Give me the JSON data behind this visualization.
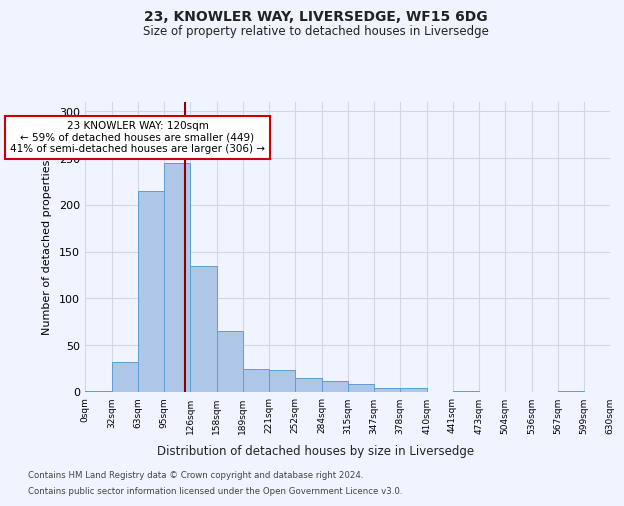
{
  "title1": "23, KNOWLER WAY, LIVERSEDGE, WF15 6DG",
  "title2": "Size of property relative to detached houses in Liversedge",
  "xlabel": "Distribution of detached houses by size in Liversedge",
  "ylabel": "Number of detached properties",
  "bar_color": "#aec6e8",
  "bar_edge_color": "#5a9fd4",
  "grid_color": "#d0d8e8",
  "property_line_color": "#8b0000",
  "property_sqm": 120,
  "annotation_line1": "23 KNOWLER WAY: 120sqm",
  "annotation_line2": "← 59% of detached houses are smaller (449)",
  "annotation_line3": "41% of semi-detached houses are larger (306) →",
  "annotation_box_color": "#ffffff",
  "annotation_box_edge_color": "#cc0000",
  "footnote1": "Contains HM Land Registry data © Crown copyright and database right 2024.",
  "footnote2": "Contains public sector information licensed under the Open Government Licence v3.0.",
  "bin_edges": [
    0,
    32,
    63,
    95,
    126,
    158,
    189,
    221,
    252,
    284,
    315,
    347,
    378,
    410,
    441,
    473,
    504,
    536,
    567,
    599,
    630
  ],
  "bin_labels": [
    "0sqm",
    "32sqm",
    "63sqm",
    "95sqm",
    "126sqm",
    "158sqm",
    "189sqm",
    "221sqm",
    "252sqm",
    "284sqm",
    "315sqm",
    "347sqm",
    "378sqm",
    "410sqm",
    "441sqm",
    "473sqm",
    "504sqm",
    "536sqm",
    "567sqm",
    "599sqm",
    "630sqm"
  ],
  "counts": [
    1,
    32,
    215,
    245,
    135,
    65,
    25,
    23,
    15,
    12,
    9,
    4,
    4,
    0,
    1,
    0,
    0,
    0,
    1,
    0
  ],
  "ylim": [
    0,
    310
  ],
  "yticks": [
    0,
    50,
    100,
    150,
    200,
    250,
    300
  ],
  "background_color": "#f0f4ff"
}
